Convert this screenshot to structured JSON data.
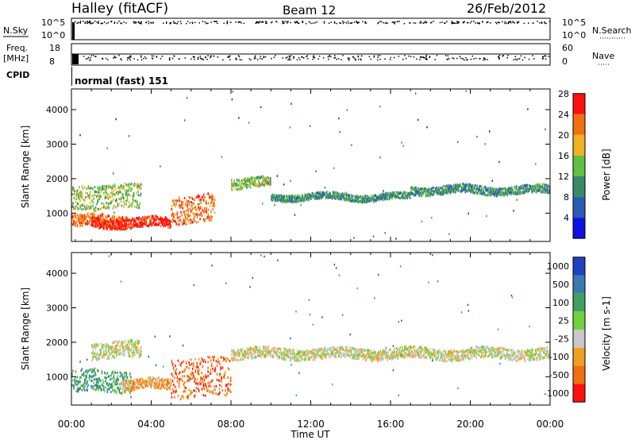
{
  "header": {
    "station": "Halley (fitACF)",
    "beam": "Beam 12",
    "date": "26/Feb/2012"
  },
  "panels": {
    "nsky": {
      "label": "N.Sky",
      "ticks": [
        "10^5",
        "10^0"
      ],
      "right_label": "N.Search",
      "right_ticks": [
        "10^5",
        "10^0"
      ]
    },
    "freq": {
      "label_line1": "Freq.",
      "label_line2": "[MHz]",
      "ticks": [
        "18",
        "8"
      ],
      "right_label": "Nave",
      "right_ticks": [
        "60",
        "0"
      ]
    },
    "cpid": {
      "label": "CPID",
      "value": "normal (fast) 151"
    }
  },
  "chart_data": [
    {
      "type": "heatmap",
      "title": "",
      "ylabel": "Slant Range [km]",
      "ylim": [
        180,
        4600
      ],
      "yticks": [
        "1000",
        "2000",
        "3000",
        "4000"
      ],
      "colorbar_label": "Power [dB]",
      "colorbar_ticks": [
        "4",
        "8",
        "12",
        "16",
        "20",
        "24",
        "28"
      ],
      "colors": [
        "#1010e0",
        "#2a5ab4",
        "#3a8a6a",
        "#60c040",
        "#f0b020",
        "#f07010",
        "#ff1010"
      ],
      "bands": [
        {
          "x_start_h": 0.0,
          "x_end_h": 2.8,
          "range_center_km": 800,
          "width_km": 220,
          "level": 5
        },
        {
          "x_start_h": 1.0,
          "x_end_h": 5.0,
          "range_center_km": 750,
          "width_km": 180,
          "level": 6
        },
        {
          "x_start_h": 5.0,
          "x_end_h": 7.2,
          "range_center_km": 1150,
          "width_km": 500,
          "level": 5
        },
        {
          "x_start_h": 0.0,
          "x_end_h": 3.5,
          "range_center_km": 1500,
          "width_km": 450,
          "level": 3
        },
        {
          "x_start_h": 8.0,
          "x_end_h": 10.0,
          "range_center_km": 1900,
          "width_km": 180,
          "level": 3
        },
        {
          "x_start_h": 10.0,
          "x_end_h": 17.0,
          "range_center_km": 1500,
          "width_km": 120,
          "level": 2
        },
        {
          "x_start_h": 17.0,
          "x_end_h": 24.0,
          "range_center_km": 1700,
          "width_km": 150,
          "level": 2
        }
      ]
    },
    {
      "type": "heatmap",
      "title": "",
      "ylabel": "Slant Range [km]",
      "xlabel": "Time UT",
      "ylim": [
        180,
        4600
      ],
      "yticks": [
        "1000",
        "2000",
        "3000",
        "4000"
      ],
      "xticks": [
        "00:00",
        "04:00",
        "08:00",
        "12:00",
        "16:00",
        "20:00",
        "00:00"
      ],
      "colorbar_label": "Velocity [m s-1]",
      "colorbar_ticks": [
        "1000",
        "500",
        "100",
        "25",
        "-25",
        "-100",
        "-500",
        "-1000"
      ],
      "colors": [
        "#2040c0",
        "#3a7ab0",
        "#40a060",
        "#70d040",
        "#c8c8c8",
        "#f0a020",
        "#f07010",
        "#ff1010"
      ],
      "bands": [
        {
          "x_start_h": 0.0,
          "x_end_h": 3.0,
          "range_center_km": 900,
          "width_km": 400,
          "level": 2
        },
        {
          "x_start_h": 2.5,
          "x_end_h": 5.0,
          "range_center_km": 800,
          "width_km": 200,
          "level": 5
        },
        {
          "x_start_h": 5.0,
          "x_end_h": 8.0,
          "range_center_km": 1000,
          "width_km": 700,
          "level": 6
        },
        {
          "x_start_h": 1.0,
          "x_end_h": 3.5,
          "range_center_km": 1800,
          "width_km": 300,
          "level": 4
        },
        {
          "x_start_h": 8.0,
          "x_end_h": 24.0,
          "range_center_km": 1700,
          "width_km": 200,
          "level": 4
        }
      ]
    }
  ],
  "time_axis": {
    "label": "Time UT",
    "ticks": [
      "00:00",
      "04:00",
      "08:00",
      "12:00",
      "16:00",
      "20:00",
      "00:00"
    ]
  },
  "colors": {
    "axis": "#000000"
  }
}
